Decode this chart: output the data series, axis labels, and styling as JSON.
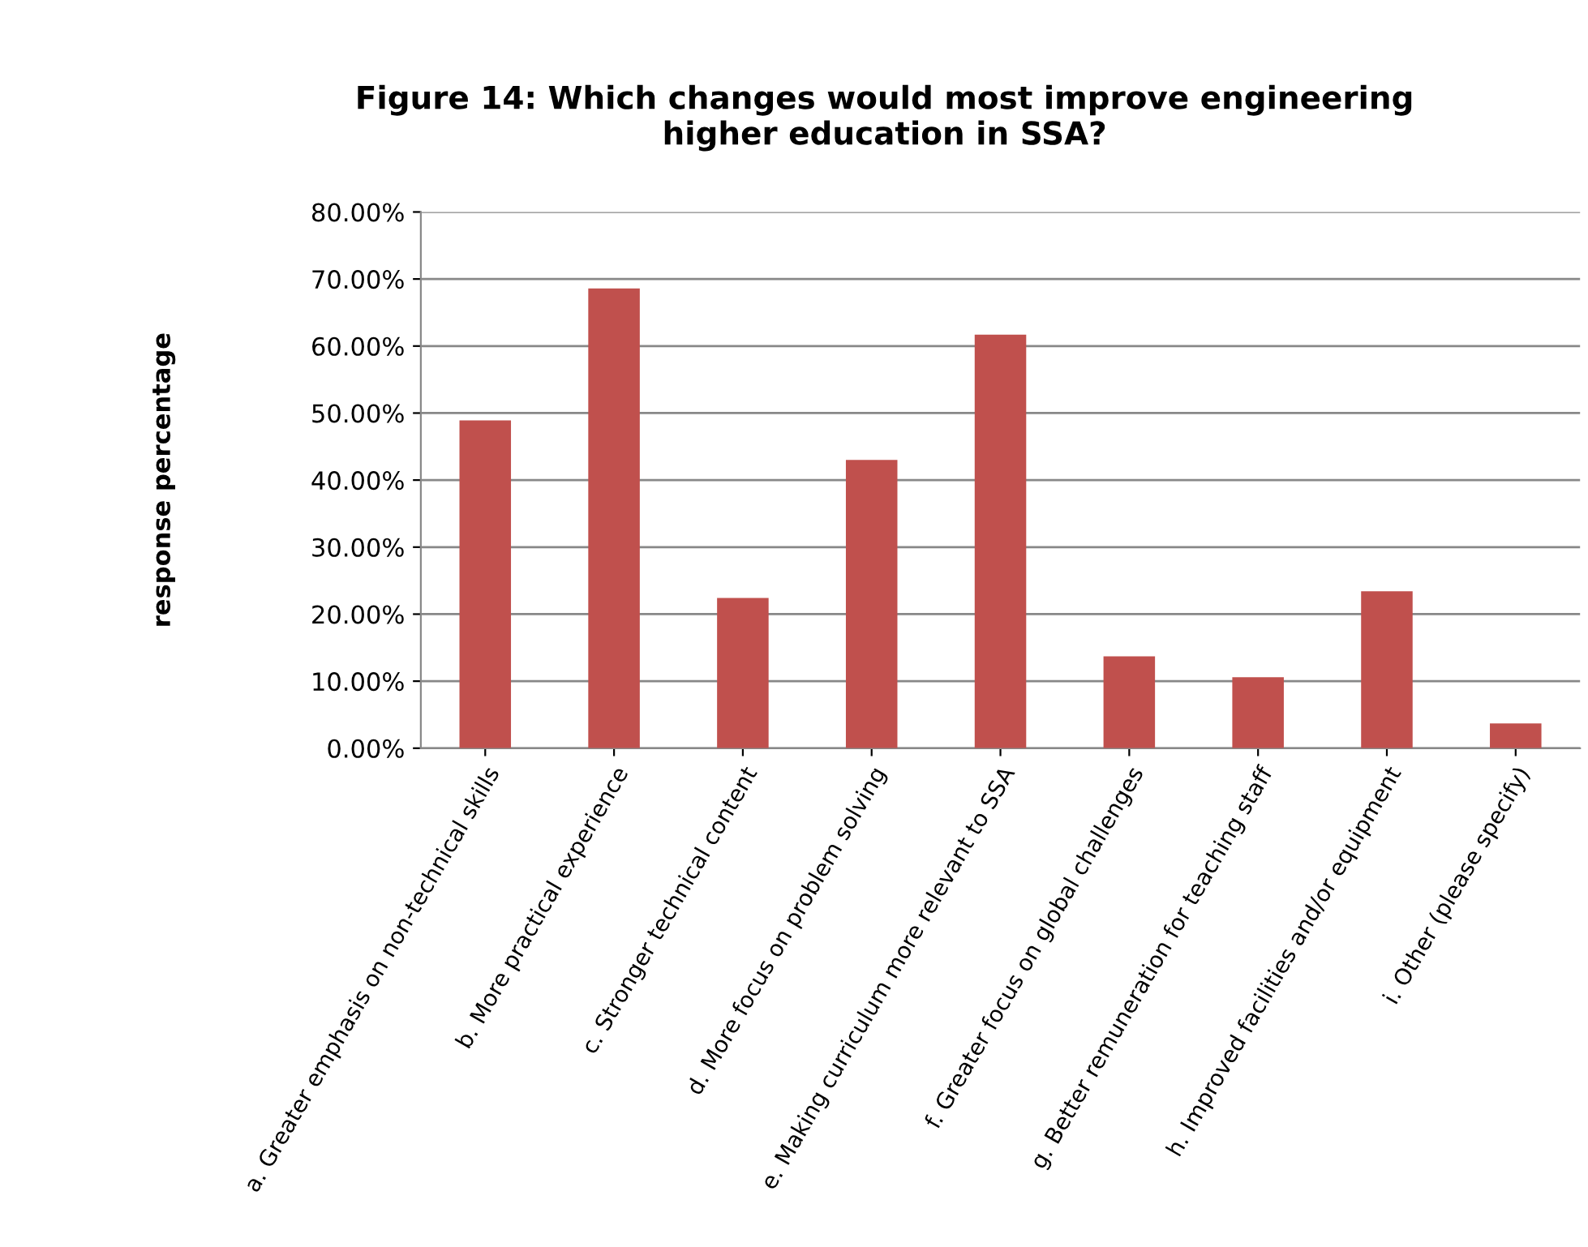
{
  "chart_data": {
    "type": "bar",
    "title": "Figure 14: Which changes would most improve engineering\nhigher education in SSA?",
    "ylabel": "response percentage",
    "categories": [
      "a. Greater emphasis on non-technical skills",
      "b. More practical experience",
      "c. Stronger technical content",
      "d. More focus on problem solving",
      "e. Making curriculum more relevant to SSA",
      "f. Greater focus on global challenges",
      "g. Better remuneration for teaching staff",
      "h. Improved facilities and/or equipment",
      "i. Other (please specify)"
    ],
    "values": [
      48.9,
      68.6,
      22.4,
      43.0,
      61.7,
      13.7,
      10.6,
      23.4,
      3.7
    ],
    "color": "#c0504d",
    "ylim": [
      0,
      80
    ],
    "yticks": [
      {
        "value": 0,
        "label": "0.00%"
      },
      {
        "value": 10,
        "label": "10.00%"
      },
      {
        "value": 20,
        "label": "20.00%"
      },
      {
        "value": 30,
        "label": "30.00%"
      },
      {
        "value": 40,
        "label": "40.00%"
      },
      {
        "value": 50,
        "label": "50.00%"
      },
      {
        "value": 60,
        "label": "60.00%"
      },
      {
        "value": 70,
        "label": "70.00%"
      },
      {
        "value": 80,
        "label": "80.00%"
      }
    ],
    "grid": "y",
    "legend": false
  }
}
